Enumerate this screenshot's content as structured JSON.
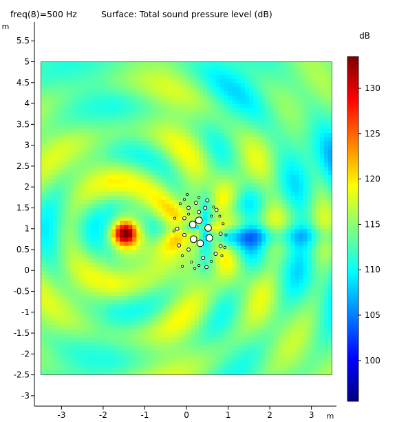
{
  "header": {
    "freq_label": "freq(8)=500 Hz",
    "plot_title": "Surface: Total sound pressure level (dB)"
  },
  "chart_data": {
    "type": "heatmap",
    "title": "Surface: Total sound pressure level (dB)",
    "subtitle": "freq(8)=500 Hz",
    "xlabel": "m",
    "ylabel": "m",
    "xlim": [
      -3.65,
      3.6
    ],
    "ylim": [
      -3.25,
      5.95
    ],
    "x_ticks": [
      -3,
      -2,
      -1,
      0,
      1,
      2,
      3
    ],
    "y_ticks": [
      -3,
      -2.5,
      -2,
      -1.5,
      -1,
      -0.5,
      0,
      0.5,
      1,
      1.5,
      2,
      2.5,
      3,
      3.5,
      4,
      4.5,
      5,
      5.5
    ],
    "domain_extent": {
      "x": [
        -3.5,
        3.5
      ],
      "y": [
        -2.5,
        5
      ]
    },
    "source_location": [
      -1.5,
      0.9
    ],
    "colorbar": {
      "label": "dB",
      "range": [
        95.5,
        133.5
      ],
      "ticks": [
        100,
        105,
        110,
        115,
        120,
        125,
        130
      ],
      "colormap": [
        "#00007f",
        "#0000ff",
        "#007fff",
        "#00ffff",
        "#7fff7f",
        "#ffff00",
        "#ff7f00",
        "#ff0000",
        "#7f0000"
      ]
    },
    "background_level_db": 114,
    "scatterer_circles": [
      {
        "x": 0.15,
        "y": 1.1,
        "r": 0.08
      },
      {
        "x": 0.3,
        "y": 1.2,
        "r": 0.08
      },
      {
        "x": 0.52,
        "y": 1.02,
        "r": 0.08
      },
      {
        "x": 0.55,
        "y": 0.78,
        "r": 0.08
      },
      {
        "x": 0.33,
        "y": 0.65,
        "r": 0.08
      },
      {
        "x": 0.17,
        "y": 0.75,
        "r": 0.08
      },
      {
        "x": 0.05,
        "y": 1.5,
        "r": 0.04
      },
      {
        "x": 0.23,
        "y": 1.62,
        "r": 0.04
      },
      {
        "x": 0.45,
        "y": 1.5,
        "r": 0.04
      },
      {
        "x": 0.5,
        "y": 1.68,
        "r": 0.04
      },
      {
        "x": -0.05,
        "y": 1.25,
        "r": 0.04
      },
      {
        "x": 0.3,
        "y": 1.4,
        "r": 0.04
      },
      {
        "x": 0.72,
        "y": 1.45,
        "r": 0.04
      },
      {
        "x": -0.22,
        "y": 1.0,
        "r": 0.04
      },
      {
        "x": -0.18,
        "y": 0.6,
        "r": 0.04
      },
      {
        "x": 0.05,
        "y": 0.5,
        "r": 0.04
      },
      {
        "x": 0.82,
        "y": 0.58,
        "r": 0.04
      },
      {
        "x": 0.48,
        "y": 0.08,
        "r": 0.04
      },
      {
        "x": 0.7,
        "y": 0.4,
        "r": 0.04
      },
      {
        "x": 0.82,
        "y": 0.88,
        "r": 0.04
      },
      {
        "x": 0.4,
        "y": 0.3,
        "r": 0.04
      },
      {
        "x": -0.05,
        "y": 0.85,
        "r": 0.04
      }
    ],
    "scatterer_dots": [
      {
        "x": -0.15,
        "y": 1.6
      },
      {
        "x": -0.05,
        "y": 1.7
      },
      {
        "x": 0.02,
        "y": 1.82
      },
      {
        "x": 0.3,
        "y": 1.75
      },
      {
        "x": 0.65,
        "y": 1.52
      },
      {
        "x": 0.8,
        "y": 1.3
      },
      {
        "x": 0.88,
        "y": 1.12
      },
      {
        "x": -0.28,
        "y": 1.25
      },
      {
        "x": -0.3,
        "y": 0.95
      },
      {
        "x": -0.1,
        "y": 0.35
      },
      {
        "x": 0.12,
        "y": 0.2
      },
      {
        "x": 0.3,
        "y": 0.12
      },
      {
        "x": 0.6,
        "y": 0.22
      },
      {
        "x": 0.85,
        "y": 0.35
      },
      {
        "x": 0.92,
        "y": 0.55
      },
      {
        "x": -0.1,
        "y": 0.1
      },
      {
        "x": 0.05,
        "y": 1.35
      },
      {
        "x": 0.95,
        "y": 0.85
      },
      {
        "x": 0.6,
        "y": 1.3
      },
      {
        "x": 0.2,
        "y": 0.05
      }
    ]
  }
}
